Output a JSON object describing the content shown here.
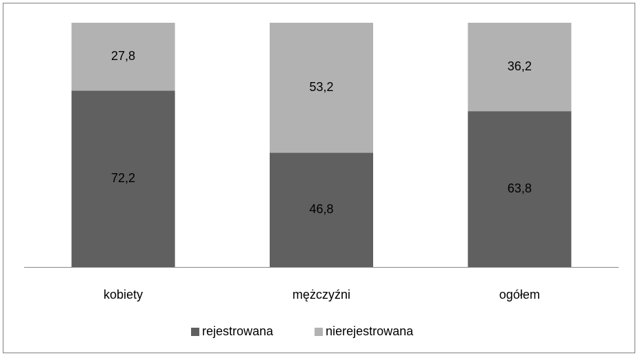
{
  "chart_data": {
    "type": "stacked_bar",
    "categories": [
      "kobiety",
      "mężczyźni",
      "ogółem"
    ],
    "series": [
      {
        "name": "rejestrowana",
        "color": "#606060",
        "values": [
          72.2,
          46.8,
          63.8
        ],
        "value_labels": [
          "72,2",
          "46,8",
          "63,8"
        ]
      },
      {
        "name": "nierejestrowana",
        "color": "#b2b2b2",
        "values": [
          27.8,
          53.2,
          36.2
        ],
        "value_labels": [
          "27,8",
          "53,2",
          "36,2"
        ]
      }
    ],
    "ylim": [
      0,
      100
    ],
    "legend": "bottom"
  }
}
